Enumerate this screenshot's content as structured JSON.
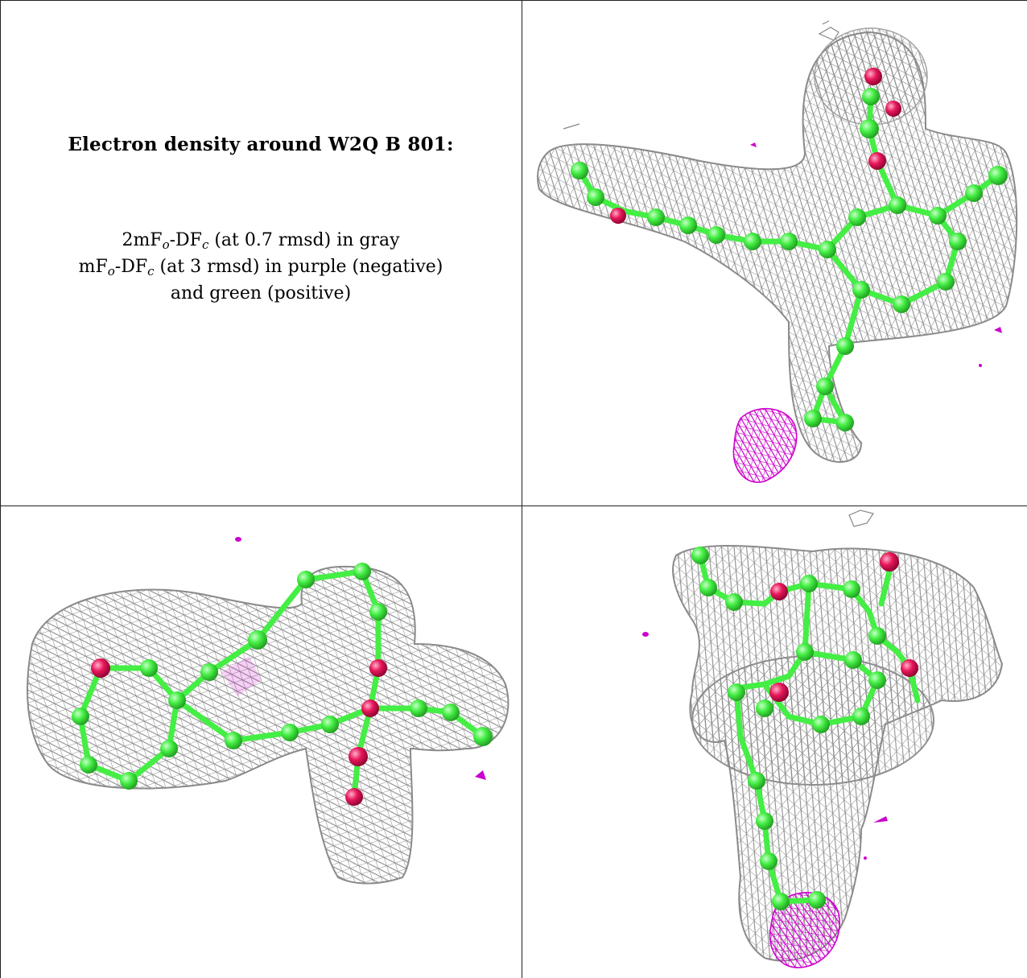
{
  "caption": {
    "title": "Electron density around W2Q B 801:",
    "line1": {
      "a": "2mF",
      "sub1": "o",
      "b": "-DF",
      "sub2": "c",
      "c": " (at 0.7 rmsd) in gray"
    },
    "line2": {
      "a": "mF",
      "sub1": "o",
      "b": "-DF",
      "sub2": "c",
      "c": " (at 3 rmsd) in purple (negative)"
    },
    "line3": "and green (positive)"
  },
  "colors": {
    "mesh_gray": "#8a8a8a",
    "negative_purple": "#cc00cc",
    "carbon_green": "#44ee44",
    "oxygen_red": "#e8185a"
  },
  "panels": [
    "view-top-right",
    "view-bottom-left",
    "view-bottom-right"
  ]
}
